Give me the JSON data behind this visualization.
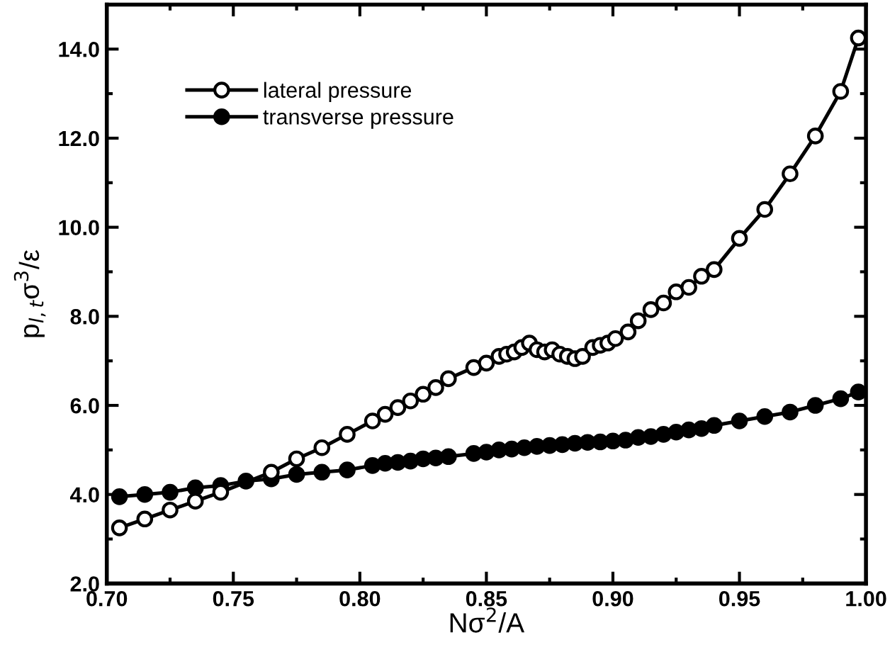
{
  "chart_data": {
    "type": "line",
    "xlabel": "Nσ$^{2}$/A",
    "ylabel": "p$_{l,t}$σ$^{3}$/ε",
    "xlim": [
      0.7,
      1.0
    ],
    "ylim": [
      2.0,
      15.0
    ],
    "xticks": [
      {
        "value": 0.7,
        "label": "0.70"
      },
      {
        "value": 0.75,
        "label": "0.75"
      },
      {
        "value": 0.8,
        "label": "0.80"
      },
      {
        "value": 0.85,
        "label": "0.85"
      },
      {
        "value": 0.9,
        "label": "0.90"
      },
      {
        "value": 0.95,
        "label": "0.95"
      },
      {
        "value": 1.0,
        "label": "1.00"
      }
    ],
    "yticks": [
      {
        "value": 2,
        "label": "2.0"
      },
      {
        "value": 4,
        "label": "4.0"
      },
      {
        "value": 6,
        "label": "6.0"
      },
      {
        "value": 8,
        "label": "8.0"
      },
      {
        "value": 10,
        "label": "10.0"
      },
      {
        "value": 12,
        "label": "12.0"
      },
      {
        "value": 14,
        "label": "14.0"
      }
    ],
    "grid": false,
    "legend": "top left",
    "marker": "circle",
    "line_style": "solid",
    "series": [
      {
        "name": "lateral pressure",
        "color": "#ffffff",
        "x": [
          0.705,
          0.715,
          0.725,
          0.735,
          0.745,
          0.765,
          0.775,
          0.785,
          0.795,
          0.805,
          0.81,
          0.815,
          0.82,
          0.825,
          0.83,
          0.835,
          0.845,
          0.85,
          0.855,
          0.858,
          0.861,
          0.864,
          0.867,
          0.87,
          0.873,
          0.876,
          0.879,
          0.882,
          0.885,
          0.888,
          0.892,
          0.895,
          0.898,
          0.901,
          0.906,
          0.91,
          0.915,
          0.92,
          0.925,
          0.93,
          0.935,
          0.94,
          0.95,
          0.96,
          0.97,
          0.98,
          0.99,
          0.997
        ],
        "values": [
          3.25,
          3.45,
          3.65,
          3.85,
          4.05,
          4.5,
          4.8,
          5.05,
          5.35,
          5.65,
          5.8,
          5.95,
          6.1,
          6.25,
          6.4,
          6.6,
          6.85,
          6.95,
          7.1,
          7.15,
          7.2,
          7.3,
          7.4,
          7.25,
          7.2,
          7.25,
          7.15,
          7.1,
          7.05,
          7.1,
          7.3,
          7.35,
          7.4,
          7.5,
          7.65,
          7.9,
          8.15,
          8.3,
          8.55,
          8.65,
          8.9,
          9.05,
          9.75,
          10.4,
          11.2,
          12.05,
          13.05,
          14.25
        ]
      },
      {
        "name": "transverse pressure",
        "color": "#000000",
        "x": [
          0.705,
          0.715,
          0.725,
          0.735,
          0.745,
          0.755,
          0.765,
          0.775,
          0.785,
          0.795,
          0.805,
          0.81,
          0.815,
          0.82,
          0.825,
          0.83,
          0.835,
          0.845,
          0.85,
          0.855,
          0.86,
          0.865,
          0.87,
          0.875,
          0.88,
          0.885,
          0.89,
          0.895,
          0.9,
          0.905,
          0.91,
          0.915,
          0.92,
          0.925,
          0.93,
          0.935,
          0.94,
          0.95,
          0.96,
          0.97,
          0.98,
          0.99,
          0.997
        ],
        "values": [
          3.95,
          4.0,
          4.05,
          4.15,
          4.2,
          4.3,
          4.35,
          4.45,
          4.5,
          4.55,
          4.65,
          4.7,
          4.72,
          4.75,
          4.8,
          4.82,
          4.85,
          4.92,
          4.95,
          5.0,
          5.02,
          5.05,
          5.08,
          5.1,
          5.12,
          5.15,
          5.17,
          5.18,
          5.2,
          5.22,
          5.28,
          5.3,
          5.35,
          5.4,
          5.45,
          5.48,
          5.55,
          5.65,
          5.75,
          5.85,
          6.0,
          6.15,
          6.3
        ]
      }
    ]
  }
}
